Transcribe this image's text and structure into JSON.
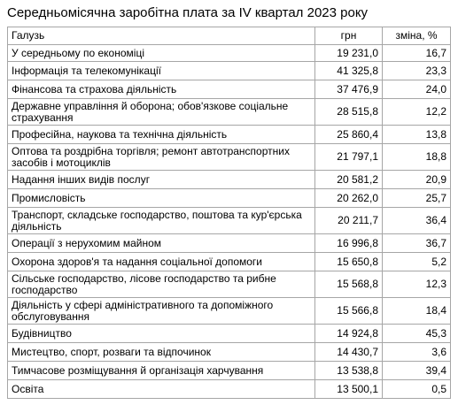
{
  "title": "Середньомісячна заробітна плата за IV квартал 2023 року",
  "table": {
    "headers": [
      "Галузь",
      "грн",
      "зміна, %"
    ],
    "average": {
      "name": "У середньому по економіці",
      "uah": "19 231,0",
      "change": "16,7"
    },
    "rows": [
      {
        "name": "Інформація та телекомунікації",
        "uah": "41 325,8",
        "change": "23,3"
      },
      {
        "name": "Фінансова та страхова діяльність",
        "uah": "37 476,9",
        "change": "24,0"
      },
      {
        "name": "Державне управління й оборона; обов'язкове соціальне страхування",
        "uah": "28 515,8",
        "change": "12,2"
      },
      {
        "name": "Професійна, наукова та технічна діяльність",
        "uah": "25 860,4",
        "change": "13,8"
      },
      {
        "name": "Оптова та роздрібна торгівля; ремонт автотранспортних засобів і мотоциклів",
        "uah": "21 797,1",
        "change": "18,8"
      },
      {
        "name": "Надання інших видів послуг",
        "uah": "20 581,2",
        "change": "20,9"
      },
      {
        "name": "Промисловість",
        "uah": "20 262,0",
        "change": "25,7"
      },
      {
        "name": "Транспорт, складське господарство, поштова та кур'єрська діяльність",
        "uah": "20 211,7",
        "change": "36,4"
      },
      {
        "name": "Операції з нерухомим майном",
        "uah": "16 996,8",
        "change": "36,7"
      },
      {
        "name": "Охорона здоров'я та надання соціальної допомоги",
        "uah": "15 650,8",
        "change": "5,2"
      },
      {
        "name": "Сільське господарство, лісове господарство та рибне господарство",
        "uah": "15 568,8",
        "change": "12,3"
      },
      {
        "name": "Діяльність у сфері адміністративного та допоміжного обслуговування",
        "uah": "15 566,8",
        "change": "18,4"
      },
      {
        "name": "Будівництво",
        "uah": "14 924,8",
        "change": "45,3"
      },
      {
        "name": "Мистецтво, спорт, розваги та відпочинок",
        "uah": "14 430,7",
        "change": "3,6"
      },
      {
        "name": "Тимчасове розміщування й організація харчування",
        "uah": "13 538,8",
        "change": "39,4"
      },
      {
        "name": "Освіта",
        "uah": "13 500,1",
        "change": "0,5"
      }
    ]
  }
}
